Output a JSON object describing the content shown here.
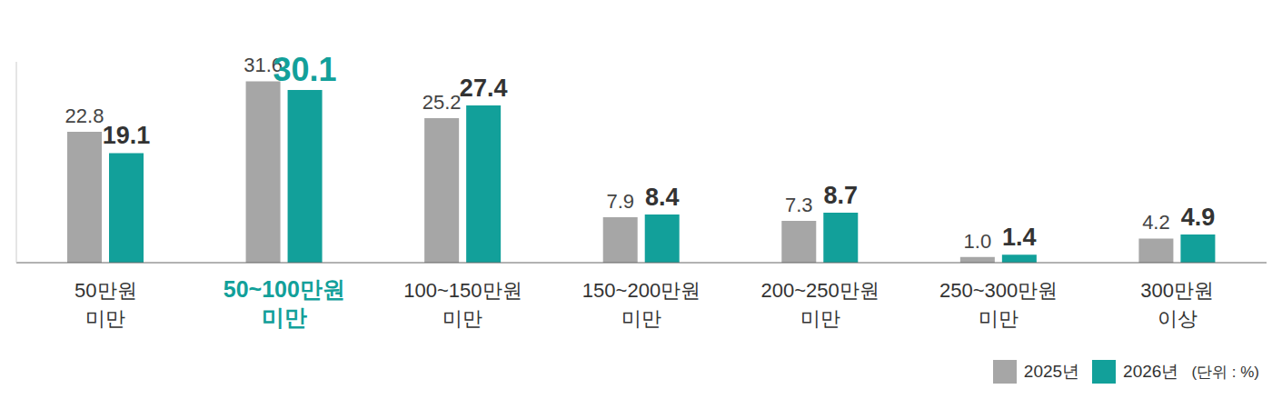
{
  "chart_data": {
    "type": "bar",
    "categories": [
      "50만원 미만",
      "50~100만원 미만",
      "100~150만원 미만",
      "150~200만원 미만",
      "200~250만원 미만",
      "250~300만원 미만",
      "300만원 이상"
    ],
    "series": [
      {
        "name": "2025년",
        "color": "#a6a6a6",
        "values": [
          22.8,
          31.6,
          25.2,
          7.9,
          7.3,
          1.0,
          4.2
        ],
        "value_labels": [
          "22.8",
          "31.6",
          "25.2",
          "7.9",
          "7.3",
          "1.0",
          "4.2"
        ]
      },
      {
        "name": "2026년",
        "color": "#12a09a",
        "values": [
          19.1,
          30.1,
          27.4,
          8.4,
          8.7,
          1.4,
          4.9
        ],
        "value_labels": [
          "19.1",
          "30.1",
          "27.4",
          "8.4",
          "8.7",
          "1.4",
          "4.9"
        ]
      }
    ],
    "ylim": [
      0,
      35
    ],
    "tick_labels": false,
    "data_labels": true,
    "grid": false,
    "legend": "bottom right",
    "annotation": "(단위 : %)"
  }
}
